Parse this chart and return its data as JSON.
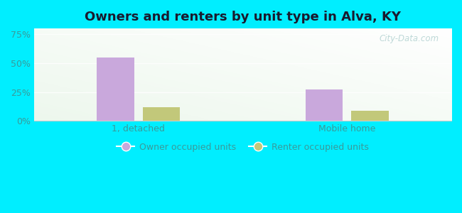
{
  "title": "Owners and renters by unit type in Alva, KY",
  "categories": [
    "1, detached",
    "Mobile home"
  ],
  "owner_values": [
    55.0,
    27.0
  ],
  "renter_values": [
    12.0,
    9.0
  ],
  "owner_color": "#c9a8dc",
  "renter_color": "#c2c87a",
  "yticks": [
    0,
    25,
    50,
    75
  ],
  "ytick_labels": [
    "0%",
    "25%",
    "50%",
    "75%"
  ],
  "ylim": [
    0,
    80
  ],
  "bar_width": 0.18,
  "legend_owner": "Owner occupied units",
  "legend_renter": "Renter occupied units",
  "bg_outer": "#00eeff",
  "watermark": "City-Data.com",
  "title_fontsize": 13,
  "axis_fontsize": 9,
  "legend_fontsize": 9,
  "tick_color": "#3a9a9a",
  "title_color": "#1a1a2e"
}
